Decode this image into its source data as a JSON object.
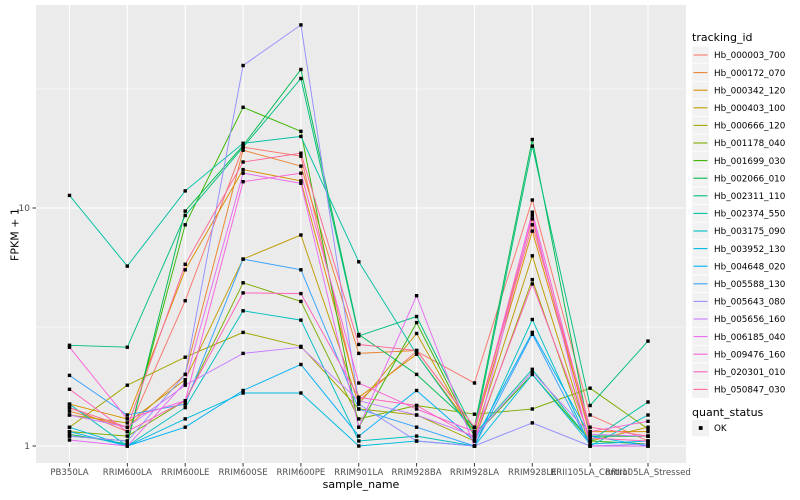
{
  "legend": {
    "tracking_title": "tracking_id",
    "quant_title": "quant_status",
    "quant_items": [
      {
        "label": "OK"
      }
    ]
  },
  "colors": {
    "panel_bg": "#EBEBEB",
    "grid": "#FFFFFF",
    "tick_mark": "#333333",
    "tick_text": "#4D4D4D",
    "point": "#000000",
    "legend_key_bg": "#F2F2F2"
  },
  "chart_data": {
    "type": "line",
    "title": "",
    "xlabel": "sample_name",
    "ylabel": "FPKM + 1",
    "y_scale": "log10",
    "ylim": [
      0.95,
      68
    ],
    "grid": true,
    "legend_position": "right",
    "point_shape": "square",
    "quant_status": "OK",
    "y_ticks": [
      {
        "label": "1",
        "value": 1
      },
      {
        "label": "10",
        "value": 10
      }
    ],
    "y_minor_ticks": [
      3.162,
      31.62
    ],
    "categories": [
      "PB350LA",
      "RRIM600LA",
      "RRIM600LE",
      "RRIM600SE",
      "RRIM600PE",
      "RRIM901LA",
      "RRIM928BA",
      "RRIM928LA",
      "RRIM928LE",
      "RRII105LA_Control",
      "RRII105LA_Stressed"
    ],
    "series": [
      {
        "name": "Hb_000003_700",
        "color": "#F8766D",
        "values": [
          1.45,
          1.15,
          4.08,
          18.0,
          16.5,
          1.55,
          2.5,
          1.84,
          10.8,
          1.35,
          1.05
        ]
      },
      {
        "name": "Hb_000172_070",
        "color": "#EA8331",
        "values": [
          1.4,
          1.2,
          2.0,
          17.5,
          15.0,
          2.45,
          2.52,
          1.2,
          9.0,
          1.1,
          1.1
        ]
      },
      {
        "name": "Hb_000342_120",
        "color": "#D89000",
        "values": [
          1.5,
          1.3,
          5.5,
          14.5,
          13.0,
          1.6,
          2.43,
          1.15,
          8.0,
          1.15,
          1.15
        ]
      },
      {
        "name": "Hb_000403_100",
        "color": "#C09B00",
        "values": [
          1.35,
          1.25,
          1.9,
          6.1,
          7.7,
          1.5,
          2.97,
          1.1,
          6.3,
          1.05,
          1.2
        ]
      },
      {
        "name": "Hb_000666_120",
        "color": "#A3A500",
        "values": [
          1.2,
          1.8,
          2.36,
          3.0,
          2.62,
          1.43,
          1.35,
          1.05,
          5.0,
          1.0,
          1.0
        ]
      },
      {
        "name": "Hb_001178_040",
        "color": "#7CAE00",
        "values": [
          1.15,
          1.1,
          1.55,
          4.85,
          4.05,
          1.3,
          1.48,
          1.36,
          1.43,
          1.75,
          1.18
        ]
      },
      {
        "name": "Hb_001699_030",
        "color": "#39B600",
        "values": [
          1.1,
          1.05,
          8.5,
          26.5,
          21.0,
          1.2,
          3.3,
          1.1,
          2.0,
          1.05,
          1.02
        ]
      },
      {
        "name": "Hb_002066_010",
        "color": "#00BB4E",
        "values": [
          1.12,
          1.02,
          9.7,
          18.3,
          38.2,
          2.94,
          2.0,
          1.2,
          19.4,
          1.1,
          1.1
        ]
      },
      {
        "name": "Hb_002311_110",
        "color": "#00BF7D",
        "values": [
          2.65,
          2.6,
          9.3,
          18.0,
          35.0,
          2.9,
          3.5,
          1.15,
          18.2,
          1.48,
          2.76
        ]
      },
      {
        "name": "Hb_002374_550",
        "color": "#00C1A3",
        "values": [
          11.3,
          5.7,
          11.8,
          18.7,
          20.0,
          5.94,
          2.43,
          1.12,
          2.1,
          1.05,
          1.53
        ]
      },
      {
        "name": "Hb_003175_090",
        "color": "#00BFC4",
        "values": [
          1.5,
          1.0,
          1.45,
          3.7,
          3.38,
          1.05,
          1.1,
          1.0,
          3.4,
          1.0,
          1.35
        ]
      },
      {
        "name": "Hb_003952_130",
        "color": "#00BAE0",
        "values": [
          1.2,
          1.0,
          1.3,
          1.67,
          1.67,
          1.0,
          1.05,
          1.0,
          2.0,
          1.02,
          1.05
        ]
      },
      {
        "name": "Hb_004648_020",
        "color": "#00B0F6",
        "values": [
          1.15,
          1.0,
          1.2,
          1.71,
          2.2,
          1.1,
          1.71,
          1.05,
          3.0,
          1.1,
          1.0
        ]
      },
      {
        "name": "Hb_005588_130",
        "color": "#35A2FF",
        "values": [
          1.98,
          1.35,
          1.5,
          6.1,
          5.5,
          1.43,
          1.2,
          1.0,
          2.95,
          1.0,
          1.0
        ]
      },
      {
        "name": "Hb_005643_080",
        "color": "#9590FF",
        "values": [
          1.1,
          1.05,
          2.0,
          39.7,
          58.8,
          1.5,
          1.05,
          1.0,
          1.25,
          1.0,
          1.02
        ]
      },
      {
        "name": "Hb_005656_160",
        "color": "#C77CFF",
        "values": [
          1.35,
          1.2,
          1.8,
          2.45,
          2.6,
          1.55,
          1.35,
          1.1,
          2.05,
          1.12,
          1.1
        ]
      },
      {
        "name": "Hb_006185_040",
        "color": "#E76BF3",
        "values": [
          1.06,
          1.0,
          1.85,
          14.0,
          12.7,
          1.2,
          4.28,
          1.0,
          9.3,
          1.0,
          1.0
        ]
      },
      {
        "name": "Hb_009476_160",
        "color": "#FA62DB",
        "values": [
          2.6,
          1.3,
          1.55,
          12.9,
          14.0,
          1.84,
          1.43,
          1.15,
          9.6,
          1.15,
          1.27
        ]
      },
      {
        "name": "Hb_020301_010",
        "color": "#FF62BC",
        "values": [
          1.73,
          1.15,
          1.55,
          4.4,
          4.37,
          1.6,
          1.48,
          1.08,
          4.8,
          1.08,
          1.05
        ]
      },
      {
        "name": "Hb_050847_030",
        "color": "#FF6A98",
        "values": [
          1.45,
          1.2,
          5.8,
          15.6,
          17.0,
          2.67,
          2.52,
          1.2,
          8.5,
          1.2,
          1.1
        ]
      }
    ]
  }
}
